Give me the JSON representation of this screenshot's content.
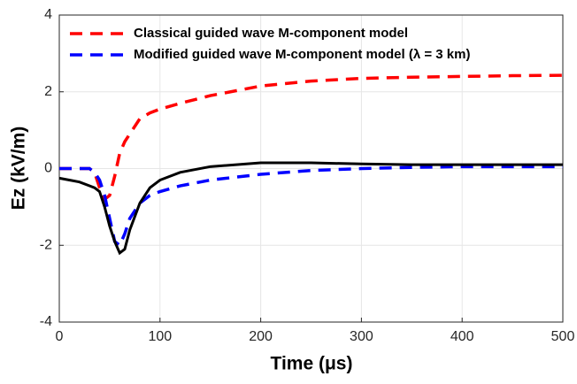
{
  "chart_data": {
    "type": "line",
    "xlabel": "Time (μs)",
    "ylabel": "Ez (kV/m)",
    "x": [
      0,
      10,
      20,
      30,
      35,
      40,
      45,
      50,
      55,
      60,
      65,
      70,
      80,
      90,
      100,
      120,
      150,
      200,
      250,
      300,
      350,
      400,
      450,
      500
    ],
    "series": [
      {
        "name": "Classical guided wave M-component model",
        "color": "#ff0000",
        "dashed": true,
        "values": [
          0,
          0,
          0,
          0,
          -0.1,
          -0.5,
          -0.8,
          -0.7,
          -0.2,
          0.4,
          0.7,
          0.9,
          1.3,
          1.45,
          1.55,
          1.7,
          1.9,
          2.15,
          2.28,
          2.35,
          2.38,
          2.4,
          2.42,
          2.43
        ]
      },
      {
        "name": "Modified guided wave M-component model (λ = 3 km)",
        "color": "#0000ff",
        "dashed": true,
        "values": [
          0,
          0,
          0,
          0,
          -0.1,
          -0.3,
          -0.7,
          -1.3,
          -1.9,
          -2.0,
          -1.7,
          -1.3,
          -0.9,
          -0.7,
          -0.6,
          -0.45,
          -0.3,
          -0.15,
          -0.05,
          0,
          0.03,
          0.05,
          0.05,
          0.05
        ]
      },
      {
        "color": "#000000",
        "dashed": false,
        "values": [
          -0.25,
          -0.3,
          -0.35,
          -0.45,
          -0.5,
          -0.6,
          -1.0,
          -1.5,
          -1.9,
          -2.2,
          -2.1,
          -1.6,
          -0.9,
          -0.5,
          -0.3,
          -0.1,
          0.05,
          0.15,
          0.15,
          0.12,
          0.1,
          0.1,
          0.1,
          0.1
        ]
      }
    ],
    "xlim": [
      0,
      500
    ],
    "xticks": [
      0,
      100,
      200,
      300,
      400,
      500
    ],
    "ylim": [
      -4,
      4
    ],
    "yticks": [
      -4,
      -2,
      0,
      2,
      4
    ],
    "grid": true,
    "legend": "top-left"
  }
}
